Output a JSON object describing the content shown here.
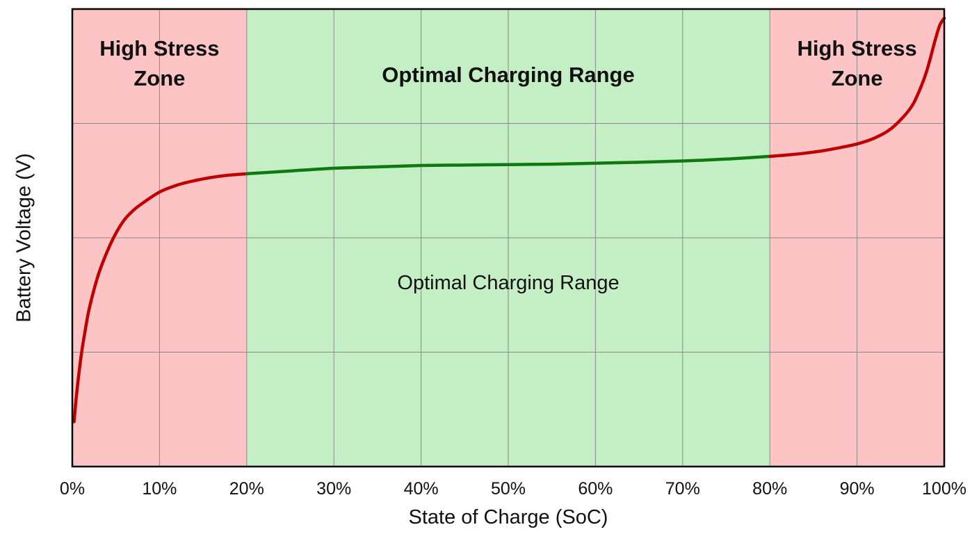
{
  "chart_data": {
    "type": "line",
    "xlabel": "State of Charge (SoC)",
    "ylabel": "Battery Voltage (V)",
    "xlim": [
      0,
      100
    ],
    "ylim": [
      0,
      1
    ],
    "y_ticks_labeled": false,
    "grid": true,
    "x_ticks": [
      "0%",
      "10%",
      "20%",
      "30%",
      "40%",
      "50%",
      "60%",
      "70%",
      "80%",
      "90%",
      "100%"
    ],
    "x_tick_values": [
      0,
      10,
      20,
      30,
      40,
      50,
      60,
      70,
      80,
      90,
      100
    ],
    "zones": [
      {
        "from": 0,
        "to": 20,
        "color": "#fcc4c4",
        "label_lines": [
          "High Stress",
          "Zone"
        ]
      },
      {
        "from": 20,
        "to": 80,
        "color": "#c4eec4",
        "label_lines": [
          "Optimal Charging Range"
        ]
      },
      {
        "from": 80,
        "to": 100,
        "color": "#fcc4c4",
        "label_lines": [
          "High Stress",
          "Zone"
        ]
      }
    ],
    "annotation": "Optimal Charging Range",
    "series": [
      {
        "x": [
          0.2,
          0.5,
          1,
          1.5,
          2,
          3,
          4,
          5,
          6,
          7,
          8,
          10,
          12,
          14,
          16,
          18,
          20,
          25,
          30,
          35,
          40,
          45,
          50,
          55,
          60,
          65,
          70,
          75,
          80,
          82,
          84,
          86,
          88,
          90,
          92,
          94,
          96,
          97,
          98,
          99,
          99.5,
          100
        ],
        "y": [
          0.098,
          0.16,
          0.24,
          0.3,
          0.35,
          0.42,
          0.47,
          0.51,
          0.54,
          0.56,
          0.575,
          0.6,
          0.615,
          0.625,
          0.632,
          0.637,
          0.64,
          0.646,
          0.652,
          0.655,
          0.658,
          0.659,
          0.66,
          0.661,
          0.663,
          0.665,
          0.668,
          0.672,
          0.678,
          0.681,
          0.685,
          0.69,
          0.697,
          0.705,
          0.718,
          0.74,
          0.78,
          0.815,
          0.865,
          0.935,
          0.965,
          0.98
        ]
      }
    ],
    "colors": {
      "stress_line": "#c00000",
      "optimal_line": "#117711",
      "grid": "#8a8a8a",
      "axis": "#000000"
    }
  }
}
